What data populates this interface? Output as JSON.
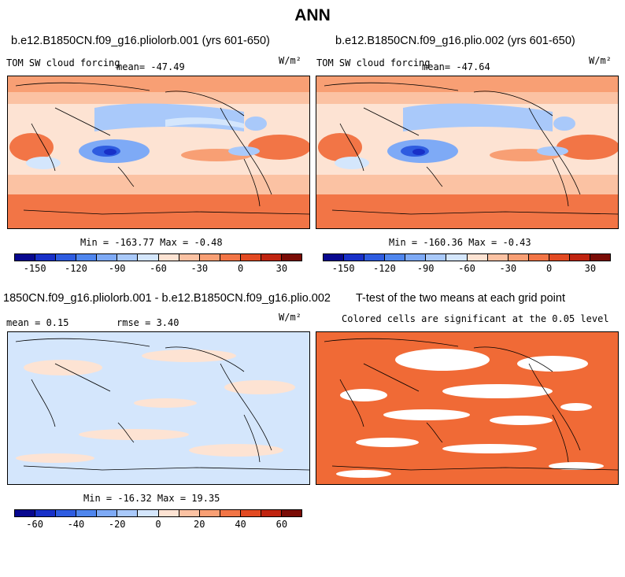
{
  "main_title": "ANN",
  "panels": [
    {
      "title": "b.e12.B1850CN.f09_g16.pliolorb.001 (yrs 601-650)",
      "variable": "TOM SW cloud forcing",
      "mean": "mean= -47.49",
      "units": "W/m²",
      "minmax": "Min = -163.77 Max =  -0.48"
    },
    {
      "title": "b.e12.B1850CN.f09_g16.plio.002 (yrs 601-650)",
      "variable": "TOM SW cloud forcing",
      "mean": "mean= -47.64",
      "units": "W/m²",
      "minmax": "Min = -160.36 Max =  -0.43"
    },
    {
      "title": "1850CN.f09_g16.pliolorb.001 - b.e12.B1850CN.f09_g16.plio.002",
      "mean": "mean =   0.15",
      "rmse": "rmse =   3.40",
      "units": "W/m²",
      "minmax": "Min = -16.32 Max =  19.35"
    },
    {
      "title": "T-test of the two means at each grid point",
      "subtitle": "Colored cells are significant at the 0.05 level"
    }
  ],
  "colors": {
    "scale": [
      "#08088f",
      "#1830c8",
      "#2e5ce0",
      "#4f86ee",
      "#7eaaf6",
      "#a9c9fa",
      "#d4e6fc",
      "#fde3d3",
      "#fbc2a3",
      "#f89f74",
      "#f27546",
      "#e24a22",
      "#c02410",
      "#7a0c06"
    ],
    "signif": "#f06a36"
  },
  "chart_data": [
    {
      "type": "heatmap",
      "title": "b.e12.B1850CN.f09_g16.pliolorb.001 (yrs 601-650)",
      "variable": "TOM SW cloud forcing",
      "units": "W/m2",
      "mean": -47.49,
      "min": -163.77,
      "max": -0.48,
      "colorbar_levels": [
        -165,
        -150,
        -135,
        -120,
        -105,
        -90,
        -75,
        -60,
        -45,
        -30,
        -15,
        0,
        15,
        30,
        45
      ],
      "colorbar_ticks": [
        "-150",
        "-120",
        "-90",
        "-60",
        "-30",
        "0",
        "30"
      ]
    },
    {
      "type": "heatmap",
      "title": "b.e12.B1850CN.f09_g16.plio.002 (yrs 601-650)",
      "variable": "TOM SW cloud forcing",
      "units": "W/m2",
      "mean": -47.64,
      "min": -160.36,
      "max": -0.43,
      "colorbar_levels": [
        -165,
        -150,
        -135,
        -120,
        -105,
        -90,
        -75,
        -60,
        -45,
        -30,
        -15,
        0,
        15,
        30,
        45
      ],
      "colorbar_ticks": [
        "-150",
        "-120",
        "-90",
        "-60",
        "-30",
        "0",
        "30"
      ]
    },
    {
      "type": "heatmap",
      "title": "1850CN.f09_g16.pliolorb.001 - b.e12.B1850CN.f09_g16.plio.002",
      "units": "W/m2",
      "mean": 0.15,
      "rmse": 3.4,
      "min": -16.32,
      "max": 19.35,
      "colorbar_levels": [
        -70,
        -60,
        -50,
        -40,
        -30,
        -20,
        -10,
        0,
        10,
        20,
        30,
        40,
        50,
        60,
        70
      ],
      "colorbar_ticks": [
        "-60",
        "-40",
        "-20",
        "0",
        "20",
        "40",
        "60"
      ]
    },
    {
      "type": "heatmap",
      "title": "T-test of the two means at each grid point",
      "subtitle": "Colored cells are significant at the 0.05 level"
    }
  ]
}
